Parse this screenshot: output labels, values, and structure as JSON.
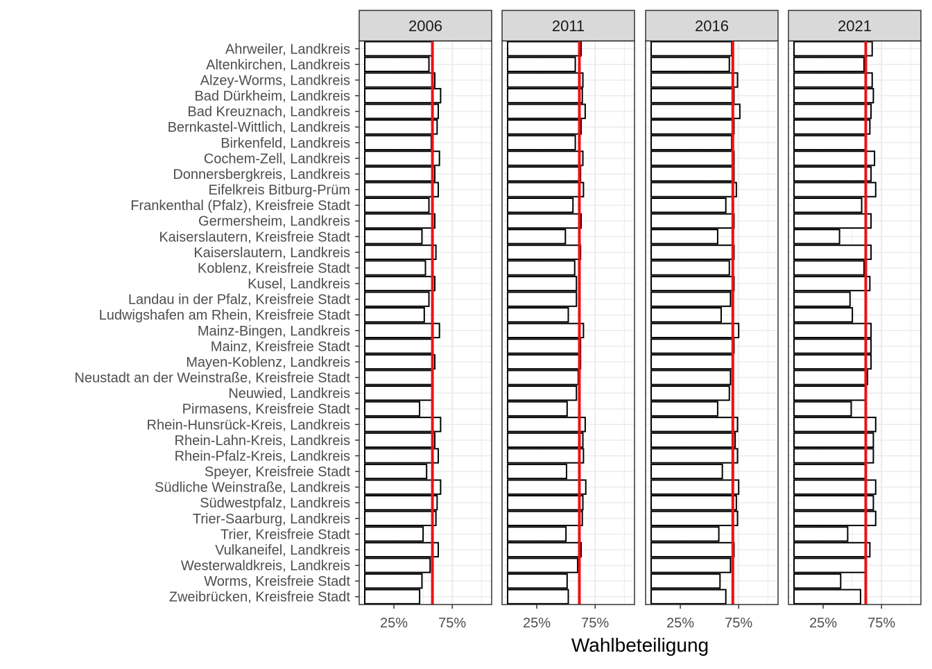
{
  "chart_data": {
    "type": "bar",
    "orientation": "horizontal",
    "facet_by": "year",
    "xlabel": "Wahlbeteiligung",
    "ylabel": "",
    "xlim": [
      0,
      1.04
    ],
    "x_ticks": [
      0.25,
      0.75
    ],
    "x_tick_labels": [
      "25%",
      "75%"
    ],
    "grid": true,
    "colors": {
      "bar_fill": "#ffffff",
      "bar_outline": "#000000",
      "reference_line": "#ee1111",
      "strip": "#d9d9d9",
      "grid": "#ebebeb"
    },
    "categories": [
      "Ahrweiler, Landkreis",
      "Altenkirchen, Landkreis",
      "Alzey-Worms, Landkreis",
      "Bad Dürkheim, Landkreis",
      "Bad Kreuznach, Landkreis",
      "Bernkastel-Wittlich, Landkreis",
      "Birkenfeld, Landkreis",
      "Cochem-Zell, Landkreis",
      "Donnersbergkreis, Landkreis",
      "Eifelkreis Bitburg-Prüm",
      "Frankenthal (Pfalz), Kreisfreie Stadt",
      "Germersheim, Landkreis",
      "Kaiserslautern, Kreisfreie Stadt",
      "Kaiserslautern, Landkreis",
      "Koblenz, Kreisfreie Stadt",
      "Kusel, Landkreis",
      "Landau in der Pfalz, Kreisfreie Stadt",
      "Ludwigshafen am Rhein, Kreisfreie Stadt",
      "Mainz-Bingen, Landkreis",
      "Mainz, Kreisfreie Stadt",
      "Mayen-Koblenz, Landkreis",
      "Neustadt an der Weinstraße, Kreisfreie Stadt",
      "Neuwied, Landkreis",
      "Pirmasens, Kreisfreie Stadt",
      "Rhein-Hunsrück-Kreis, Landkreis",
      "Rhein-Lahn-Kreis, Landkreis",
      "Rhein-Pfalz-Kreis, Landkreis",
      "Speyer, Kreisfreie Stadt",
      "Südliche Weinstraße, Landkreis",
      "Südwestpfalz, Landkreis",
      "Trier-Saarburg, Landkreis",
      "Trier, Kreisfreie Stadt",
      "Vulkaneifel, Landkreis",
      "Westerwaldkreis, Landkreis",
      "Worms, Kreisfreie Stadt",
      "Zweibrücken, Kreisfreie Stadt"
    ],
    "facets": [
      {
        "name": "2006",
        "reference": 0.58,
        "values": [
          0.58,
          0.55,
          0.6,
          0.65,
          0.63,
          0.62,
          0.57,
          0.64,
          0.6,
          0.63,
          0.55,
          0.6,
          0.49,
          0.61,
          0.52,
          0.6,
          0.55,
          0.51,
          0.64,
          0.58,
          0.6,
          0.58,
          0.58,
          0.47,
          0.65,
          0.6,
          0.63,
          0.53,
          0.65,
          0.62,
          0.61,
          0.5,
          0.63,
          0.56,
          0.49,
          0.47
        ]
      },
      {
        "name": "2011",
        "reference": 0.615,
        "values": [
          0.63,
          0.58,
          0.645,
          0.64,
          0.665,
          0.63,
          0.58,
          0.645,
          0.625,
          0.65,
          0.56,
          0.63,
          0.495,
          0.625,
          0.575,
          0.59,
          0.59,
          0.52,
          0.65,
          0.625,
          0.625,
          0.605,
          0.59,
          0.51,
          0.665,
          0.645,
          0.65,
          0.505,
          0.67,
          0.645,
          0.64,
          0.5,
          0.63,
          0.6,
          0.51,
          0.52
        ]
      },
      {
        "name": "2016",
        "reference": 0.7,
        "values": [
          0.69,
          0.67,
          0.74,
          0.71,
          0.76,
          0.71,
          0.69,
          0.71,
          0.71,
          0.73,
          0.64,
          0.71,
          0.57,
          0.71,
          0.67,
          0.71,
          0.68,
          0.6,
          0.75,
          0.71,
          0.7,
          0.68,
          0.67,
          0.57,
          0.74,
          0.72,
          0.74,
          0.61,
          0.75,
          0.73,
          0.74,
          0.58,
          0.71,
          0.68,
          0.59,
          0.64
        ]
      },
      {
        "name": "2021",
        "reference": 0.615,
        "values": [
          0.67,
          0.6,
          0.67,
          0.68,
          0.66,
          0.65,
          0.61,
          0.69,
          0.66,
          0.7,
          0.58,
          0.66,
          0.39,
          0.66,
          0.6,
          0.65,
          0.48,
          0.5,
          0.66,
          0.66,
          0.66,
          0.63,
          0.61,
          0.49,
          0.7,
          0.68,
          0.68,
          0.61,
          0.7,
          0.68,
          0.7,
          0.46,
          0.65,
          0.61,
          0.4,
          0.57
        ]
      }
    ]
  }
}
